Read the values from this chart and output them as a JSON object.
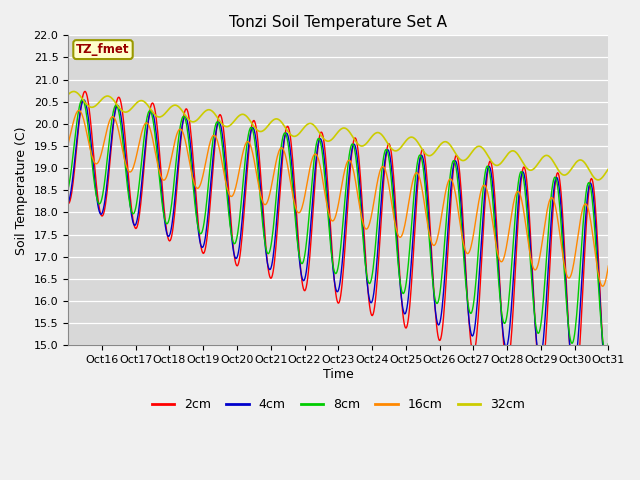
{
  "title": "Tonzi Soil Temperature Set A",
  "xlabel": "Time",
  "ylabel": "Soil Temperature (C)",
  "annotation": "TZ_fmet",
  "ylim": [
    15.0,
    22.0
  ],
  "yticks": [
    15.0,
    15.5,
    16.0,
    16.5,
    17.0,
    17.5,
    18.0,
    18.5,
    19.0,
    19.5,
    20.0,
    20.5,
    21.0,
    21.5,
    22.0
  ],
  "xtick_labels": [
    "Oct 16",
    "Oct 17",
    "Oct 18",
    "Oct 19",
    "Oct 20",
    "Oct 21",
    "Oct 22",
    "Oct 23",
    "Oct 24",
    "Oct 25",
    "Oct 26",
    "Oct 27",
    "Oct 28",
    "Oct 29",
    "Oct 30",
    "Oct 31"
  ],
  "line_colors": {
    "2cm": "#ff0000",
    "4cm": "#0000cc",
    "8cm": "#00cc00",
    "16cm": "#ff8800",
    "32cm": "#cccc00"
  },
  "legend_labels": [
    "2cm",
    "4cm",
    "8cm",
    "16cm",
    "32cm"
  ],
  "fig_facecolor": "#f0f0f0",
  "plot_bg_color": "#d8d8d8",
  "title_fontsize": 11,
  "axis_label_fontsize": 9,
  "tick_fontsize": 8
}
